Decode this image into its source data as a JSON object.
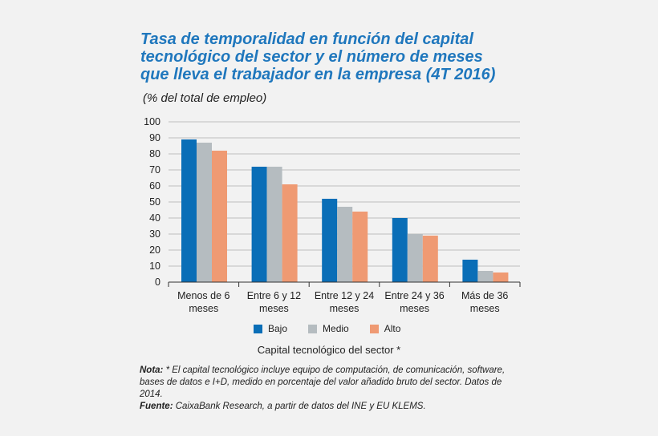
{
  "title_lines": [
    "Tasa de temporalidad en función del capital",
    "tecnológico del sector y el número de meses",
    "que lleva el trabajador en la empresa (4T 2016)"
  ],
  "subtitle": "(% del total de empleo)",
  "legend": {
    "bajo": "Bajo",
    "medio": "Medio",
    "alto": "Alto"
  },
  "xaxis_title": "Capital tecnológico del sector *",
  "notes": {
    "nota_label": "Nota:",
    "nota_text": " * El capital tecnológico incluye equipo de computación, de comunicación, software, bases de datos e I+D, medido en porcentaje del valor añadido bruto del sector. Datos de 2014.",
    "fuente_label": "Fuente:",
    "fuente_text": " CaixaBank Research, a partir de datos del INE y EU KLEMS."
  },
  "chart_data": {
    "type": "bar",
    "categories": [
      [
        "Menos de 6",
        "meses"
      ],
      [
        "Entre 6 y 12",
        "meses"
      ],
      [
        "Entre 12 y 24",
        "meses"
      ],
      [
        "Entre 24 y 36",
        "meses"
      ],
      [
        "Más de 36",
        "meses"
      ]
    ],
    "series": [
      {
        "name": "Bajo",
        "color": "#0a6eb7",
        "values": [
          89,
          72,
          52,
          40,
          14
        ]
      },
      {
        "name": "Medio",
        "color": "#b5bcc0",
        "values": [
          87,
          72,
          47,
          30,
          7
        ]
      },
      {
        "name": "Alto",
        "color": "#ef9a73",
        "values": [
          82,
          61,
          44,
          29,
          6
        ]
      }
    ],
    "yticks": [
      0,
      10,
      20,
      30,
      40,
      50,
      60,
      70,
      80,
      90,
      100
    ],
    "ylim": [
      0,
      100
    ],
    "grid": true,
    "legend_position": "bottom"
  }
}
